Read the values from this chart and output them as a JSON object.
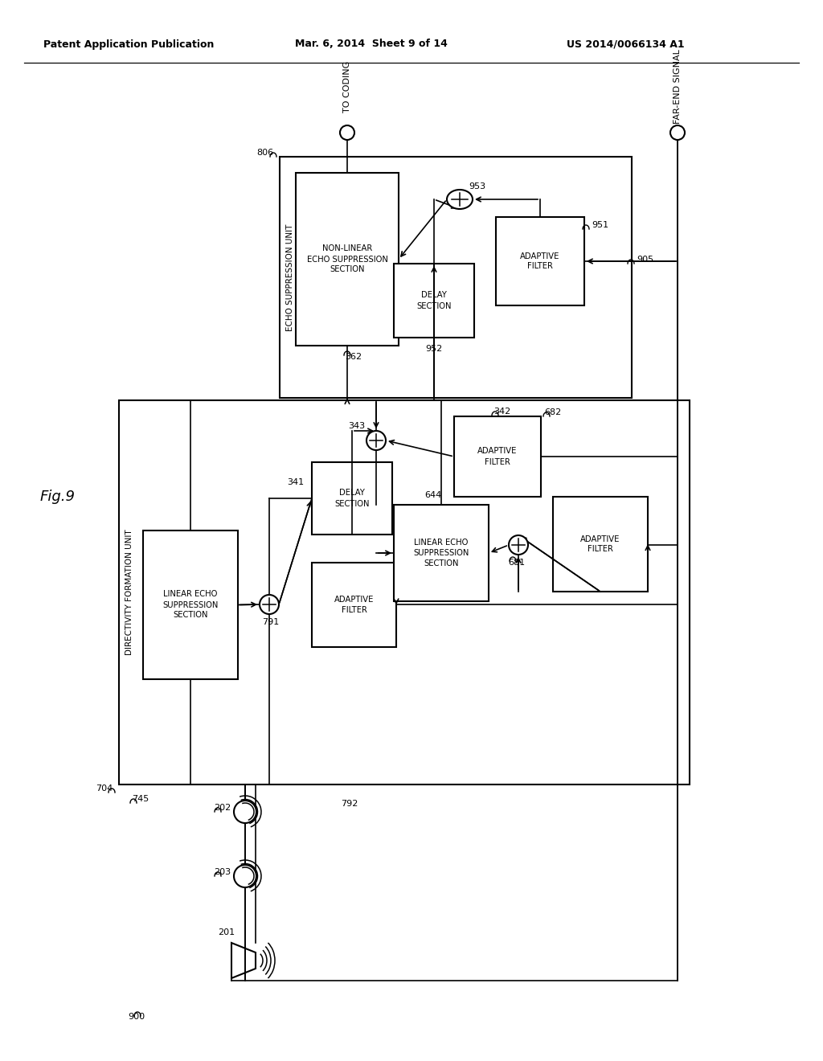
{
  "bg": "#ffffff",
  "header_left": "Patent Application Publication",
  "header_center": "Mar. 6, 2014  Sheet 9 of 14",
  "header_right": "US 2014/0066134 A1",
  "fig_label": "Fig.9"
}
